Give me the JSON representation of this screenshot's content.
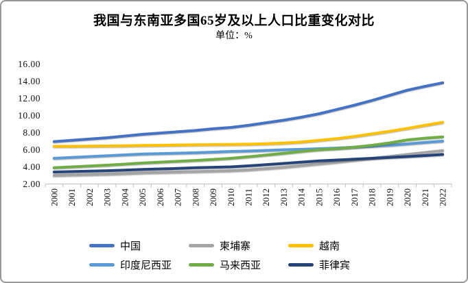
{
  "chart_data": {
    "type": "line",
    "title": "我国与东南亚多国65岁及以上人口比重变化对比",
    "unit_label": "单位：%",
    "xlabel": "",
    "ylabel": "",
    "x": [
      "2000",
      "2001",
      "2002",
      "2003",
      "2004",
      "2005",
      "2006",
      "2007",
      "2008",
      "2009",
      "2010",
      "2011",
      "2012",
      "2013",
      "2014",
      "2015",
      "2016",
      "2017",
      "2018",
      "2019",
      "2020",
      "2021",
      "2022"
    ],
    "ylim": [
      2,
      16
    ],
    "y_ticks": [
      "2.00",
      "4.00",
      "6.00",
      "8.00",
      "10.00",
      "12.00",
      "14.00",
      "16.00"
    ],
    "grid": false,
    "legend_position": "bottom",
    "axis_color": "#bfbfbf",
    "series": [
      {
        "name": "中国",
        "key": "china",
        "color": "#4472C4",
        "values": [
          6.95,
          7.1,
          7.25,
          7.4,
          7.6,
          7.8,
          7.95,
          8.1,
          8.25,
          8.45,
          8.6,
          8.85,
          9.15,
          9.45,
          9.8,
          10.2,
          10.7,
          11.2,
          11.75,
          12.35,
          12.95,
          13.4,
          13.82
        ]
      },
      {
        "name": "柬埔寨",
        "key": "cambodia",
        "color": "#A5A5A5",
        "values": [
          3.0,
          3.05,
          3.1,
          3.15,
          3.22,
          3.3,
          3.35,
          3.4,
          3.45,
          3.5,
          3.55,
          3.65,
          3.8,
          3.95,
          4.15,
          4.35,
          4.55,
          4.78,
          5.0,
          5.22,
          5.45,
          5.68,
          5.9
        ]
      },
      {
        "name": "越南",
        "key": "vietnam",
        "color": "#FFC000",
        "values": [
          6.4,
          6.4,
          6.42,
          6.44,
          6.46,
          6.5,
          6.52,
          6.55,
          6.58,
          6.6,
          6.62,
          6.65,
          6.7,
          6.78,
          6.9,
          7.1,
          7.3,
          7.55,
          7.85,
          8.15,
          8.5,
          8.85,
          9.2
        ]
      },
      {
        "name": "印度尼西亚",
        "key": "indonesia",
        "color": "#5B9BD5",
        "values": [
          5.0,
          5.1,
          5.2,
          5.3,
          5.4,
          5.5,
          5.55,
          5.6,
          5.65,
          5.72,
          5.8,
          5.85,
          5.92,
          6.0,
          6.05,
          6.12,
          6.2,
          6.3,
          6.4,
          6.52,
          6.68,
          6.85,
          7.0
        ]
      },
      {
        "name": "马来西亚",
        "key": "malaysia",
        "color": "#70AD47",
        "values": [
          3.9,
          4.0,
          4.1,
          4.2,
          4.32,
          4.45,
          4.55,
          4.65,
          4.75,
          4.87,
          5.0,
          5.18,
          5.38,
          5.58,
          5.8,
          6.0,
          6.12,
          6.3,
          6.52,
          6.8,
          7.15,
          7.35,
          7.5
        ]
      },
      {
        "name": "菲律宾",
        "key": "philippines",
        "color": "#264478",
        "values": [
          3.4,
          3.45,
          3.5,
          3.55,
          3.62,
          3.7,
          3.76,
          3.82,
          3.9,
          3.95,
          4.0,
          4.12,
          4.26,
          4.4,
          4.55,
          4.7,
          4.8,
          4.9,
          5.0,
          5.1,
          5.2,
          5.32,
          5.45
        ]
      }
    ]
  }
}
